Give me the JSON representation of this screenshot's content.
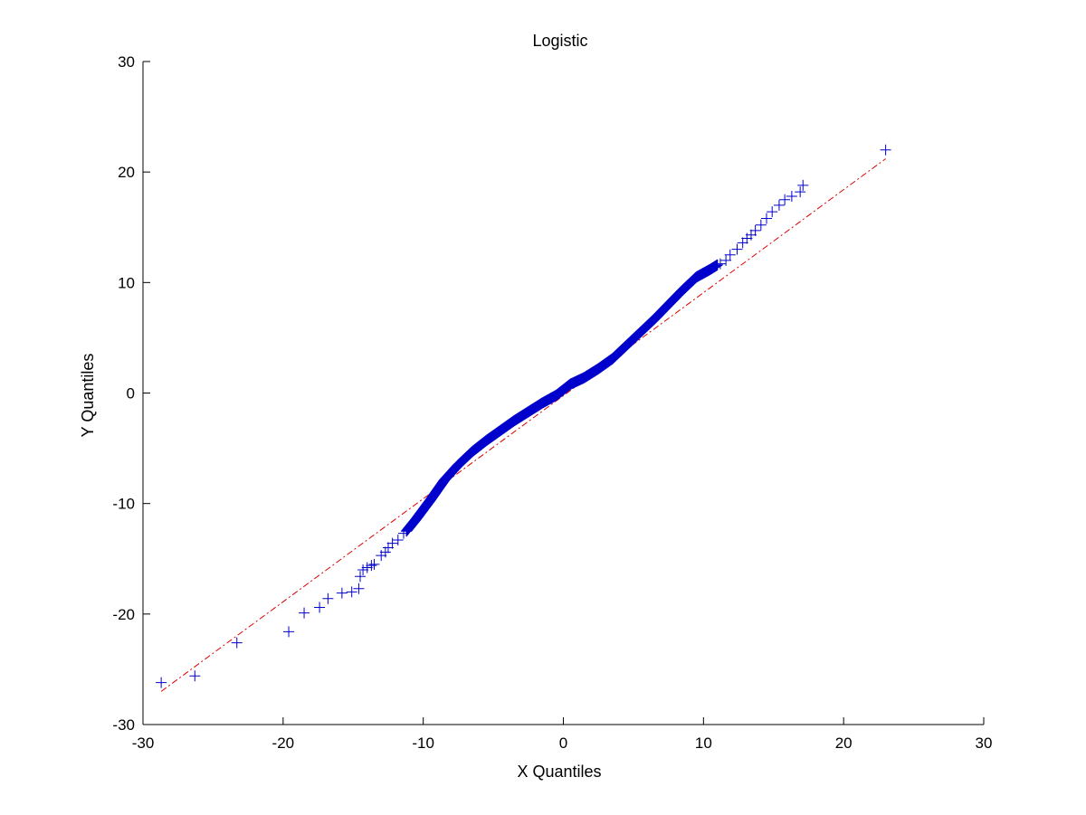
{
  "chart_data": {
    "type": "scatter",
    "title": "Logistic",
    "xlabel": "X Quantiles",
    "ylabel": "Y Quantiles",
    "xlim": [
      -30,
      30
    ],
    "ylim": [
      -30,
      30
    ],
    "xticks": [
      "-30",
      "-20",
      "-10",
      "0",
      "10",
      "20",
      "30"
    ],
    "yticks": [
      "-30",
      "-20",
      "-10",
      "0",
      "10",
      "20",
      "30"
    ],
    "grid": false,
    "legend": "none",
    "marker": "plus",
    "marker_color": "#0000cc",
    "reference_line": {
      "style": "dash-dot",
      "color": "#dd0000",
      "x": [
        -28.7,
        23.0
      ],
      "y": [
        -27.0,
        21.2
      ]
    },
    "outlier_points": {
      "x": [
        -28.7,
        -26.3,
        -23.3,
        -19.6,
        -18.5,
        -17.4,
        -16.8,
        -15.8,
        -15.1,
        -14.6,
        -14.5,
        -14.3,
        -14.0,
        -13.7,
        -13.5,
        -13.0,
        -12.7,
        -12.5,
        -12.2,
        -11.8,
        -11.4,
        11.2,
        11.6,
        11.9,
        12.4,
        12.8,
        13.1,
        13.4,
        13.7,
        14.1,
        14.5,
        14.9,
        15.4,
        15.8,
        16.3,
        16.9,
        17.1,
        23.0
      ],
      "y": [
        -26.2,
        -25.6,
        -22.6,
        -21.6,
        -19.9,
        -19.4,
        -18.6,
        -18.1,
        -18.0,
        -17.7,
        -16.6,
        -16.0,
        -15.8,
        -15.6,
        -15.5,
        -14.7,
        -14.4,
        -14.0,
        -13.6,
        -13.3,
        -12.7,
        11.7,
        12.0,
        12.5,
        13.0,
        13.6,
        14.0,
        14.3,
        14.7,
        15.2,
        15.8,
        16.4,
        17.0,
        17.5,
        17.8,
        18.2,
        18.8,
        22.0
      ]
    },
    "central_curve": {
      "x": [
        -11.2,
        -10.5,
        -9.5,
        -8.5,
        -7.5,
        -6.5,
        -5.5,
        -4.5,
        -3.5,
        -2.5,
        -1.5,
        -0.5,
        0.0,
        0.5,
        1.5,
        2.5,
        3.5,
        4.5,
        5.5,
        6.5,
        7.5,
        8.5,
        9.5,
        10.5,
        11.0
      ],
      "y": [
        -12.5,
        -11.4,
        -9.7,
        -7.9,
        -6.5,
        -5.3,
        -4.3,
        -3.4,
        -2.5,
        -1.7,
        -0.9,
        -0.2,
        0.3,
        0.8,
        1.4,
        2.2,
        3.1,
        4.3,
        5.5,
        6.7,
        8.0,
        9.3,
        10.5,
        11.2,
        11.6
      ]
    },
    "curve_point_count": 1200
  }
}
